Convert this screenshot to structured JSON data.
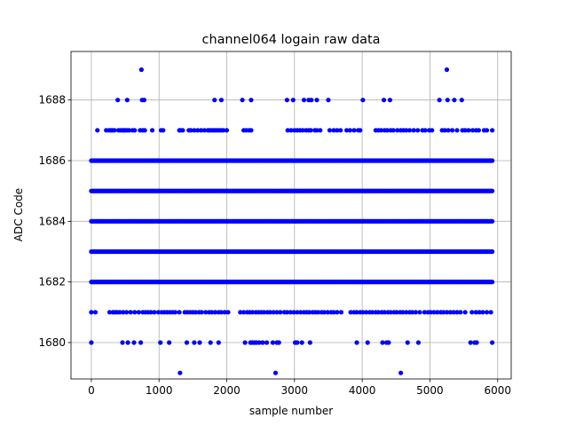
{
  "chart_data": {
    "type": "scatter",
    "title": "channel064 logain raw data",
    "xlabel": "sample number",
    "ylabel": "ADC Code",
    "xlim": [
      -300,
      6200
    ],
    "ylim": [
      1678.8,
      1689.6
    ],
    "xticks": [
      0,
      1000,
      2000,
      3000,
      4000,
      5000,
      6000
    ],
    "yticks": [
      1680,
      1682,
      1684,
      1686,
      1688
    ],
    "grid": true,
    "marker_color": "#0000ff",
    "n_samples": 5920,
    "level_bands": [
      {
        "y": 1682,
        "x_range": [
          0,
          5920
        ],
        "density": "continuous"
      },
      {
        "y": 1683,
        "x_range": [
          0,
          5920
        ],
        "density": "continuous"
      },
      {
        "y": 1684,
        "x_range": [
          0,
          5920
        ],
        "density": "continuous"
      },
      {
        "y": 1685,
        "x_range": [
          0,
          5920
        ],
        "density": "continuous"
      },
      {
        "y": 1686,
        "x_range": [
          0,
          5920
        ],
        "density": "continuous"
      }
    ],
    "sparse_points": [
      {
        "y": 1679,
        "x": [
          1310,
          2720,
          4570
        ]
      },
      {
        "y": 1689,
        "x": [
          740,
          5250
        ]
      },
      {
        "y": 1688,
        "x": [
          390,
          530,
          750,
          780,
          1820,
          1920,
          2230,
          2360,
          2890,
          2980,
          3140,
          3210,
          3250,
          3330,
          3500,
          4010,
          4320,
          4410,
          5140,
          5260,
          5360,
          5470
        ]
      },
      {
        "y": 1680,
        "x": [
          0,
          460,
          540,
          630,
          730,
          1020,
          1150,
          1410,
          1520,
          1600,
          1760,
          1880,
          2270,
          2350,
          2380,
          2410,
          2440,
          2480,
          2530,
          2590,
          2680,
          2740,
          2770,
          3010,
          3040,
          3110,
          3230,
          3920,
          4080,
          4300,
          4360,
          4390,
          4670,
          4830,
          5600,
          5660,
          5690,
          5920
        ]
      },
      {
        "y": 1687,
        "x": [
          90,
          220,
          260,
          290,
          310,
          340,
          400,
          430,
          460,
          480,
          500,
          530,
          560,
          610,
          640,
          720,
          760,
          790,
          900,
          1030,
          1060,
          1300,
          1320,
          1350,
          1440,
          1470,
          1520,
          1570,
          1620,
          1670,
          1720,
          1740,
          1770,
          1800,
          1830,
          1860,
          1890,
          1920,
          1950,
          2000,
          2250,
          2290,
          2330,
          2360,
          2900,
          2950,
          3000,
          3040,
          3080,
          3120,
          3170,
          3210,
          3240,
          3300,
          3330,
          3380,
          3520,
          3580,
          3630,
          3680,
          3770,
          3820,
          3880,
          3940,
          3970,
          4200,
          4240,
          4280,
          4330,
          4370,
          4420,
          4460,
          4520,
          4570,
          4610,
          4650,
          4700,
          4760,
          4820,
          4890,
          4930,
          4990,
          5030,
          5180,
          5220,
          5270,
          5330,
          5400,
          5480,
          5520,
          5570,
          5630,
          5680,
          5720,
          5800,
          5840,
          5920
        ]
      },
      {
        "y": 1681,
        "x": [
          0,
          60,
          270,
          320,
          350,
          380,
          420,
          470,
          520,
          580,
          640,
          700,
          760,
          800,
          840,
          880,
          930,
          990,
          1040,
          1080,
          1120,
          1160,
          1200,
          1240,
          1300,
          1380,
          1420,
          1460,
          1500,
          1540,
          1590,
          1630,
          1690,
          1740,
          1780,
          1830,
          1880,
          1920,
          1970,
          2020,
          2200,
          2250,
          2300,
          2340,
          2380,
          2430,
          2470,
          2510,
          2550,
          2600,
          2640,
          2690,
          2740,
          2790,
          2850,
          2890,
          2940,
          2990,
          3040,
          3090,
          3140,
          3180,
          3220,
          3270,
          3310,
          3350,
          3400,
          3440,
          3490,
          3540,
          3580,
          3630,
          3690,
          3830,
          3880,
          3920,
          3970,
          4010,
          4060,
          4110,
          4150,
          4200,
          4240,
          4290,
          4330,
          4380,
          4420,
          4470,
          4510,
          4560,
          4600,
          4650,
          4700,
          4740,
          4790,
          4850,
          4920,
          4970,
          5010,
          5060,
          5110,
          5160,
          5200,
          5250,
          5300,
          5350,
          5400,
          5450,
          5520,
          5620,
          5680,
          5730,
          5780,
          5840,
          5900
        ]
      }
    ]
  }
}
